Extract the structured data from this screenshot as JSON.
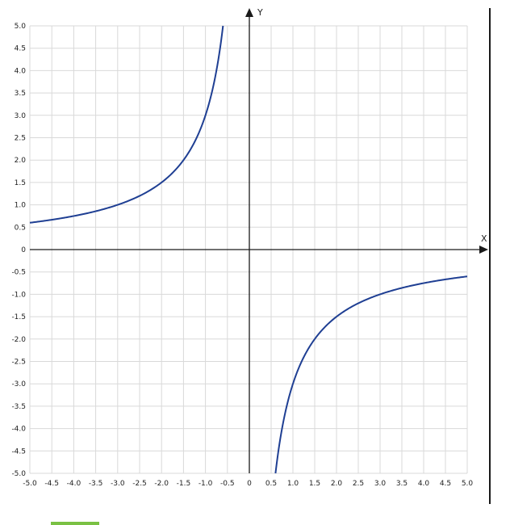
{
  "chart_data": {
    "type": "line",
    "xlabel": "X",
    "ylabel": "Y",
    "xlim": [
      -5.0,
      5.0
    ],
    "ylim": [
      -5.0,
      5.0
    ],
    "grid": true,
    "x_ticks": [
      "-5.0",
      "-4.5",
      "-4.0",
      "-3.5",
      "-3.0",
      "-2.5",
      "-2.0",
      "-1.5",
      "-1.0",
      "-0.5",
      "0",
      "0.5",
      "1.0",
      "1.5",
      "2.0",
      "2.5",
      "3.0",
      "3.5",
      "4.0",
      "4.5",
      "5.0"
    ],
    "y_ticks": [
      "5.0",
      "4.5",
      "4.0",
      "3.5",
      "3.0",
      "2.5",
      "2.0",
      "1.5",
      "1.0",
      "0.5",
      "0",
      "-0.5",
      "-1.0",
      "-1.5",
      "-2.0",
      "-2.5",
      "-3.0",
      "-3.5",
      "-4.0",
      "-4.5",
      "-5.0"
    ],
    "series": [
      {
        "color": "#1f3f93",
        "segments": [
          [
            [
              -5.0,
              0.6
            ],
            [
              -4.5,
              0.667
            ],
            [
              -4.0,
              0.75
            ],
            [
              -3.5,
              0.857
            ],
            [
              -3.0,
              1.0
            ],
            [
              -2.5,
              1.2
            ],
            [
              -2.0,
              1.5
            ],
            [
              -1.5,
              2.0
            ],
            [
              -1.25,
              2.4
            ],
            [
              -1.0,
              3.0
            ],
            [
              -0.8,
              3.75
            ],
            [
              -0.7,
              4.29
            ],
            [
              -0.6,
              5.0
            ]
          ],
          [
            [
              0.6,
              -5.0
            ],
            [
              0.7,
              -4.29
            ],
            [
              0.8,
              -3.75
            ],
            [
              1.0,
              -3.0
            ],
            [
              1.25,
              -2.4
            ],
            [
              1.5,
              -2.0
            ],
            [
              2.0,
              -1.5
            ],
            [
              2.5,
              -1.2
            ],
            [
              3.0,
              -1.0
            ],
            [
              3.5,
              -0.857
            ],
            [
              4.0,
              -0.75
            ],
            [
              4.5,
              -0.667
            ],
            [
              5.0,
              -0.6
            ]
          ]
        ]
      }
    ]
  }
}
